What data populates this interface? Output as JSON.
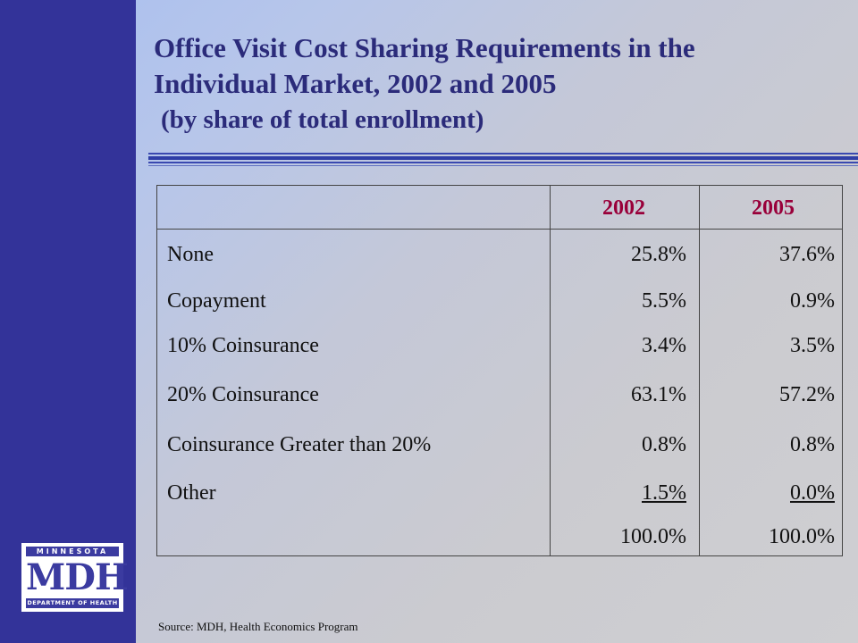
{
  "title": {
    "line1": "Office Visit Cost Sharing Requirements in the",
    "line2": "Individual Market, 2002 and 2005",
    "subtitle": "(by share of total enrollment)"
  },
  "table": {
    "columns": [
      "",
      "2002",
      "2005"
    ],
    "rows": [
      {
        "label": "None",
        "y2002": "25.8%",
        "y2005": "37.6%"
      },
      {
        "label": "Copayment",
        "y2002": "5.5%",
        "y2005": "0.9%"
      },
      {
        "label": "10% Coinsurance",
        "y2002": "3.4%",
        "y2005": "3.5%"
      },
      {
        "label": "20% Coinsurance",
        "y2002": "63.1%",
        "y2005": "57.2%"
      },
      {
        "label": "Coinsurance  Greater than 20%",
        "y2002": "0.8%",
        "y2005": "0.8%"
      },
      {
        "label": "Other",
        "y2002": "1.5%",
        "y2005": "0.0%"
      }
    ],
    "total": {
      "label": "",
      "y2002": "100.0%",
      "y2005": "100.0%"
    }
  },
  "logo": {
    "top_text": "MINNESOTA",
    "main_text": "MDH",
    "bottom_text": "DEPARTMENT OF HEALTH"
  },
  "source": "Source:  MDH, Health Economics Program",
  "colors": {
    "left_bar": "#333399",
    "title": "#2b2b7a",
    "header": "#99003a"
  }
}
